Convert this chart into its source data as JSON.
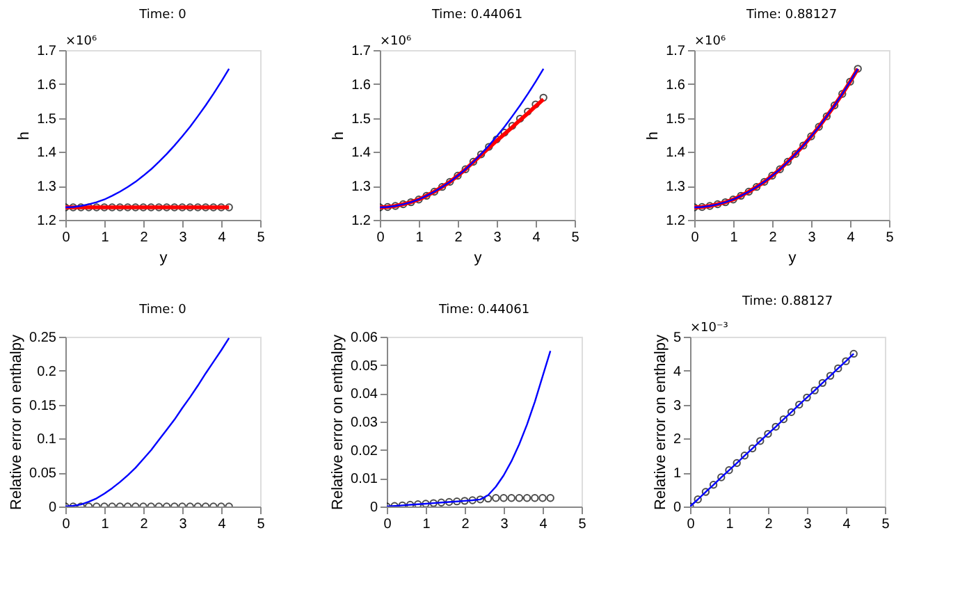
{
  "chart_data": [
    {
      "type": "line",
      "title": "Time: 0",
      "xlabel": "y",
      "ylabel": "h",
      "annotations": [
        "×10⁶"
      ],
      "x": [
        0,
        0.2,
        0.4,
        0.6,
        0.8,
        1.0,
        1.2,
        1.4,
        1.6,
        1.8,
        2.0,
        2.2,
        2.4,
        2.6,
        2.8,
        3.0,
        3.2,
        3.4,
        3.6,
        3.8,
        4.0,
        4.2
      ],
      "xlim": [
        0,
        5
      ],
      "xticks": [
        0,
        1,
        2,
        3,
        4,
        5
      ],
      "ylim": [
        1.2,
        1.7
      ],
      "yticks": [
        1.2,
        1.3,
        1.4,
        1.5,
        1.6,
        1.7
      ],
      "grid": false,
      "series": [
        {
          "type": "line",
          "color": "#0000ff",
          "values": [
            1.237,
            1.238,
            1.241,
            1.246,
            1.252,
            1.26,
            1.271,
            1.283,
            1.297,
            1.312,
            1.33,
            1.349,
            1.371,
            1.394,
            1.419,
            1.446,
            1.474,
            1.505,
            1.537,
            1.571,
            1.607,
            1.645
          ]
        },
        {
          "type": "line",
          "color": "#ff0000",
          "values": [
            1.237,
            1.237,
            1.237,
            1.237,
            1.237,
            1.237,
            1.237,
            1.237,
            1.237,
            1.237,
            1.237,
            1.237,
            1.237,
            1.237,
            1.237,
            1.237,
            1.237,
            1.237,
            1.237,
            1.237,
            1.237,
            1.237
          ]
        },
        {
          "type": "scatter",
          "marker": "circle",
          "color": "#000000",
          "values": [
            1.237,
            1.237,
            1.237,
            1.237,
            1.237,
            1.237,
            1.237,
            1.237,
            1.237,
            1.237,
            1.237,
            1.237,
            1.237,
            1.237,
            1.237,
            1.237,
            1.237,
            1.237,
            1.237,
            1.237,
            1.237,
            1.237
          ]
        }
      ]
    },
    {
      "type": "line",
      "title": "Time: 0.44061",
      "xlabel": "y",
      "ylabel": "h",
      "annotations": [
        "×10⁶"
      ],
      "x": [
        0,
        0.2,
        0.4,
        0.6,
        0.8,
        1.0,
        1.2,
        1.4,
        1.6,
        1.8,
        2.0,
        2.2,
        2.4,
        2.6,
        2.8,
        3.0,
        3.2,
        3.4,
        3.6,
        3.8,
        4.0,
        4.2
      ],
      "xlim": [
        0,
        5
      ],
      "xticks": [
        0,
        1,
        2,
        3,
        4,
        5
      ],
      "ylim": [
        1.2,
        1.7
      ],
      "yticks": [
        1.2,
        1.3,
        1.4,
        1.5,
        1.6,
        1.7
      ],
      "grid": false,
      "series": [
        {
          "type": "line",
          "color": "#0000ff",
          "values": [
            1.237,
            1.238,
            1.241,
            1.246,
            1.252,
            1.26,
            1.271,
            1.283,
            1.297,
            1.312,
            1.33,
            1.349,
            1.371,
            1.394,
            1.419,
            1.446,
            1.474,
            1.505,
            1.537,
            1.571,
            1.607,
            1.645
          ]
        },
        {
          "type": "line",
          "color": "#ff0000",
          "values": [
            1.237,
            1.238,
            1.241,
            1.246,
            1.252,
            1.26,
            1.271,
            1.283,
            1.297,
            1.312,
            1.33,
            1.349,
            1.37,
            1.391,
            1.412,
            1.433,
            1.453,
            1.473,
            1.494,
            1.514,
            1.535,
            1.555
          ]
        },
        {
          "type": "scatter",
          "marker": "circle",
          "color": "#000000",
          "values": [
            1.237,
            1.238,
            1.241,
            1.246,
            1.252,
            1.26,
            1.271,
            1.283,
            1.297,
            1.312,
            1.33,
            1.349,
            1.371,
            1.393,
            1.415,
            1.437,
            1.457,
            1.477,
            1.498,
            1.519,
            1.54,
            1.56
          ]
        }
      ]
    },
    {
      "type": "line",
      "title": "Time: 0.88127",
      "xlabel": "y",
      "ylabel": "h",
      "annotations": [
        "×10⁶"
      ],
      "x": [
        0,
        0.2,
        0.4,
        0.6,
        0.8,
        1.0,
        1.2,
        1.4,
        1.6,
        1.8,
        2.0,
        2.2,
        2.4,
        2.6,
        2.8,
        3.0,
        3.2,
        3.4,
        3.6,
        3.8,
        4.0,
        4.2
      ],
      "xlim": [
        0,
        5
      ],
      "xticks": [
        0,
        1,
        2,
        3,
        4,
        5
      ],
      "ylim": [
        1.2,
        1.7
      ],
      "yticks": [
        1.2,
        1.3,
        1.4,
        1.5,
        1.6,
        1.7
      ],
      "grid": false,
      "series": [
        {
          "type": "line",
          "color": "#0000ff",
          "values": [
            1.237,
            1.238,
            1.241,
            1.246,
            1.252,
            1.26,
            1.271,
            1.283,
            1.297,
            1.312,
            1.33,
            1.349,
            1.371,
            1.394,
            1.419,
            1.446,
            1.474,
            1.505,
            1.537,
            1.571,
            1.607,
            1.645
          ]
        },
        {
          "type": "line",
          "color": "#ff0000",
          "values": [
            1.237,
            1.238,
            1.241,
            1.246,
            1.252,
            1.26,
            1.271,
            1.283,
            1.297,
            1.312,
            1.33,
            1.349,
            1.371,
            1.394,
            1.419,
            1.446,
            1.474,
            1.505,
            1.537,
            1.571,
            1.607,
            1.645
          ]
        },
        {
          "type": "scatter",
          "marker": "circle",
          "color": "#000000",
          "values": [
            1.237,
            1.238,
            1.241,
            1.246,
            1.252,
            1.26,
            1.271,
            1.283,
            1.297,
            1.312,
            1.33,
            1.349,
            1.371,
            1.394,
            1.419,
            1.446,
            1.474,
            1.505,
            1.537,
            1.571,
            1.607,
            1.645
          ]
        }
      ]
    },
    {
      "type": "line",
      "title": "Time: 0",
      "ylabel": "Relative error on enthalpy",
      "x": [
        0,
        0.2,
        0.4,
        0.6,
        0.8,
        1.0,
        1.2,
        1.4,
        1.6,
        1.8,
        2.0,
        2.2,
        2.4,
        2.6,
        2.8,
        3.0,
        3.2,
        3.4,
        3.6,
        3.8,
        4.0,
        4.2
      ],
      "xlim": [
        0,
        5
      ],
      "xticks": [
        0,
        1,
        2,
        3,
        4,
        5
      ],
      "ylim": [
        0,
        0.25
      ],
      "yticks": [
        0,
        0.05,
        0.1,
        0.15,
        0.2,
        0.25
      ],
      "grid": false,
      "series": [
        {
          "type": "line",
          "color": "#0000ff",
          "values": [
            0,
            0.001,
            0.003,
            0.007,
            0.012,
            0.019,
            0.027,
            0.036,
            0.046,
            0.057,
            0.07,
            0.083,
            0.098,
            0.113,
            0.128,
            0.145,
            0.161,
            0.178,
            0.196,
            0.213,
            0.23,
            0.248
          ]
        },
        {
          "type": "scatter",
          "marker": "circle",
          "color": "#000000",
          "values": [
            0,
            0,
            0,
            0,
            0,
            0,
            0,
            0,
            0,
            0,
            0,
            0,
            0,
            0,
            0,
            0,
            0,
            0,
            0,
            0,
            0,
            0
          ]
        }
      ]
    },
    {
      "type": "line",
      "title": "Time: 0.44061",
      "ylabel": "Relative error on enthalpy",
      "x": [
        0,
        0.2,
        0.4,
        0.6,
        0.8,
        1.0,
        1.2,
        1.4,
        1.6,
        1.8,
        2.0,
        2.2,
        2.4,
        2.6,
        2.8,
        3.0,
        3.2,
        3.4,
        3.6,
        3.8,
        4.0,
        4.2
      ],
      "xlim": [
        0,
        5
      ],
      "xticks": [
        0,
        1,
        2,
        3,
        4,
        5
      ],
      "ylim": [
        0,
        0.06
      ],
      "yticks": [
        0,
        0.01,
        0.02,
        0.03,
        0.04,
        0.05,
        0.06
      ],
      "grid": false,
      "series": [
        {
          "type": "line",
          "color": "#0000ff",
          "values": [
            0,
            0.0002,
            0.0004,
            0.0006,
            0.0008,
            0.001,
            0.0012,
            0.0014,
            0.0016,
            0.0018,
            0.002,
            0.0022,
            0.0025,
            0.004,
            0.007,
            0.011,
            0.016,
            0.022,
            0.029,
            0.037,
            0.046,
            0.055
          ]
        },
        {
          "type": "scatter",
          "marker": "circle",
          "color": "#000000",
          "values": [
            0,
            0.0002,
            0.0004,
            0.0006,
            0.0008,
            0.001,
            0.0012,
            0.0014,
            0.0016,
            0.0018,
            0.002,
            0.0022,
            0.0025,
            0.0028,
            0.003,
            0.003,
            0.003,
            0.003,
            0.003,
            0.003,
            0.003,
            0.003
          ]
        }
      ]
    },
    {
      "type": "line",
      "title": "Time: 0.88127",
      "ylabel": "Relative error on enthalpy",
      "annotations": [
        "×10⁻³"
      ],
      "x": [
        0,
        0.2,
        0.4,
        0.6,
        0.8,
        1.0,
        1.2,
        1.4,
        1.6,
        1.8,
        2.0,
        2.2,
        2.4,
        2.6,
        2.8,
        3.0,
        3.2,
        3.4,
        3.6,
        3.8,
        4.0,
        4.2
      ],
      "xlim": [
        0,
        5
      ],
      "xticks": [
        0,
        1,
        2,
        3,
        4,
        5
      ],
      "ylim": [
        0,
        5
      ],
      "yticks": [
        0,
        1,
        2,
        3,
        4,
        5
      ],
      "grid": false,
      "series": [
        {
          "type": "line",
          "color": "#0000ff",
          "values": [
            0,
            0.21,
            0.43,
            0.64,
            0.86,
            1.07,
            1.28,
            1.5,
            1.71,
            1.93,
            2.14,
            2.35,
            2.57,
            2.78,
            3.0,
            3.21,
            3.42,
            3.64,
            3.85,
            4.07,
            4.28,
            4.5
          ]
        },
        {
          "type": "scatter",
          "marker": "circle",
          "color": "#000000",
          "values": [
            0,
            0.21,
            0.43,
            0.64,
            0.86,
            1.07,
            1.28,
            1.5,
            1.71,
            1.93,
            2.14,
            2.35,
            2.57,
            2.78,
            3.0,
            3.21,
            3.42,
            3.64,
            3.85,
            4.07,
            4.28,
            4.5
          ]
        }
      ]
    }
  ]
}
